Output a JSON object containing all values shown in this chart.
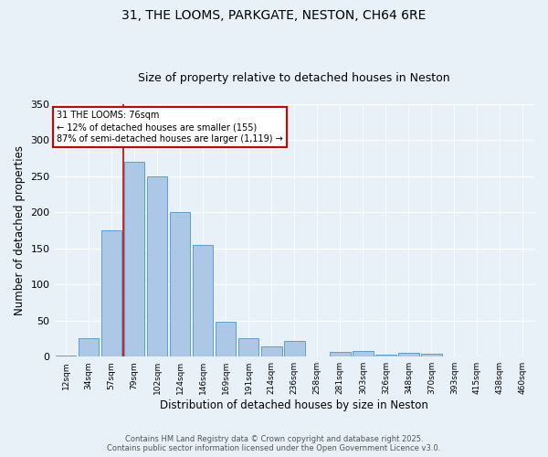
{
  "title1": "31, THE LOOMS, PARKGATE, NESTON, CH64 6RE",
  "title2": "Size of property relative to detached houses in Neston",
  "xlabel": "Distribution of detached houses by size in Neston",
  "ylabel": "Number of detached properties",
  "categories": [
    "12sqm",
    "34sqm",
    "57sqm",
    "79sqm",
    "102sqm",
    "124sqm",
    "146sqm",
    "169sqm",
    "191sqm",
    "214sqm",
    "236sqm",
    "258sqm",
    "281sqm",
    "303sqm",
    "326sqm",
    "348sqm",
    "370sqm",
    "393sqm",
    "415sqm",
    "438sqm",
    "460sqm"
  ],
  "values": [
    2,
    25,
    175,
    270,
    250,
    200,
    155,
    48,
    25,
    14,
    22,
    0,
    7,
    8,
    3,
    5,
    4,
    0,
    0,
    0,
    0
  ],
  "bar_color": "#adc8e6",
  "bar_edge_color": "#5a9fd4",
  "bg_color": "#e8f0f8",
  "grid_color": "#ffffff",
  "vline_color": "#cc0000",
  "annotation_text": "31 THE LOOMS: 76sqm\n← 12% of detached houses are smaller (155)\n87% of semi-detached houses are larger (1,119) →",
  "annotation_box_color": "#cc0000",
  "ylim": [
    0,
    350
  ],
  "yticks": [
    0,
    50,
    100,
    150,
    200,
    250,
    300,
    350
  ],
  "footer_text": "Contains HM Land Registry data © Crown copyright and database right 2025.\nContains public sector information licensed under the Open Government Licence v3.0.",
  "title_fontsize": 10,
  "subtitle_fontsize": 9
}
